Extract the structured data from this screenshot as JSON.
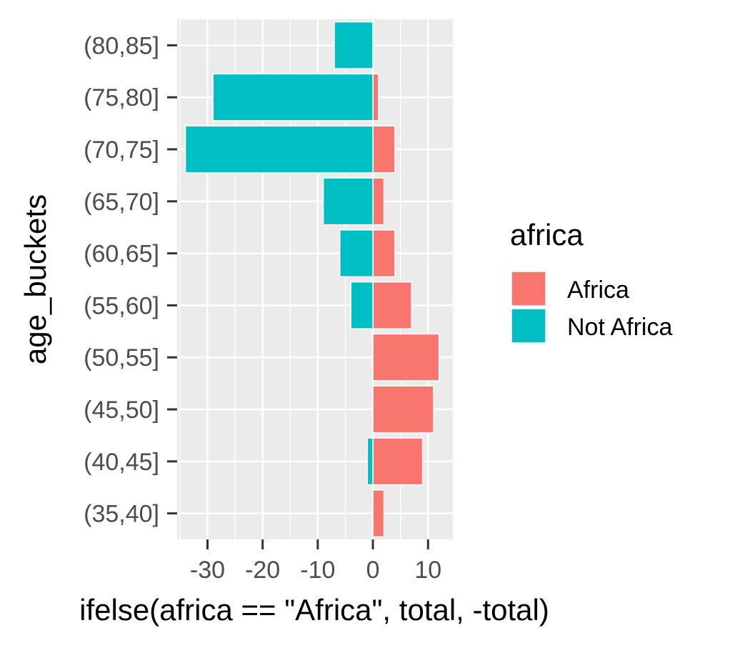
{
  "chart_data": {
    "type": "bar",
    "orientation": "horizontal",
    "categories": [
      "(35,40]",
      "(40,45]",
      "(45,50]",
      "(50,55]",
      "(55,60]",
      "(60,65]",
      "(65,70]",
      "(70,75]",
      "(75,80]",
      "(80,85]"
    ],
    "series": [
      {
        "name": "Africa",
        "color": "#F8766D",
        "values": [
          2,
          9,
          11,
          12,
          7,
          4,
          2,
          4,
          1,
          0
        ]
      },
      {
        "name": "Not Africa",
        "color": "#00BFC4",
        "values": [
          0,
          -1,
          0,
          0,
          -4,
          -6,
          -9,
          -34,
          -29,
          -7
        ]
      }
    ],
    "xlabel": "ifelse(africa == \"Africa\", total, -total)",
    "ylabel": "age_buckets",
    "xlim": [
      -35.5,
      14.5
    ],
    "x_ticks": [
      -30,
      -20,
      -10,
      0,
      10
    ],
    "x_tick_labels": [
      "-30",
      "-20",
      "-10",
      "0",
      "10"
    ],
    "legend_title": "africa",
    "legend_position": "right",
    "grid": true,
    "panel_background": "#EBEBEB"
  }
}
